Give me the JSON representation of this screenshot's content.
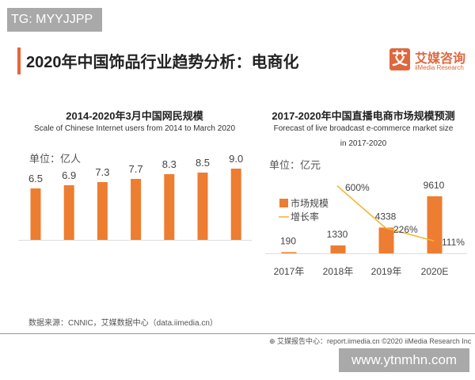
{
  "watermark_top": "TG: MYYJJPP",
  "watermark_bottom": "www.ytnmhn.com",
  "header": {
    "title": "2020年中国饰品行业趋势分析：电商化",
    "logo_mark": "艾",
    "logo_cn": "艾媒咨询",
    "logo_en": "iiMedia Research"
  },
  "colors": {
    "accent": "#e8643a",
    "bar": "#ed7d31",
    "line": "#f2b632"
  },
  "source": "数据来源：CNNIC，艾媒数据中心（data.iimedia.cn）",
  "footer": "艾媒报告中心：report.iimedia.cn  ©2020  iiMedia Research  Inc",
  "chart_data": [
    {
      "type": "bar",
      "title": "2014-2020年3月中国网民规模",
      "subtitle": "Scale of Chinese Internet users from 2014 to March 2020",
      "unit": "单位：亿人",
      "values": [
        6.5,
        6.9,
        7.3,
        7.7,
        8.3,
        8.5,
        9.0
      ],
      "labels": [
        "6.5",
        "6.9",
        "7.3",
        "7.7",
        "8.3",
        "8.5",
        "9.0"
      ],
      "grid": false
    },
    {
      "type": "bar+line",
      "title": "2017-2020年中国直播电商市场规模预测",
      "subtitle": "Forecast of live broadcast e-commerce market size",
      "subtitle2": "in 2017-2020",
      "unit": "单位：亿元",
      "categories": [
        "2017年",
        "2018年",
        "2019年",
        "2020E"
      ],
      "series": [
        {
          "name": "市场规模",
          "type": "bar",
          "values": [
            190,
            1330,
            4338,
            9610
          ],
          "labels": [
            "190",
            "1330",
            "4338",
            "9610"
          ]
        },
        {
          "name": "增长率",
          "type": "line",
          "values": [
            null,
            600,
            226,
            111
          ],
          "labels": [
            "",
            "600%",
            "226%",
            "111%"
          ]
        }
      ],
      "legend": "left",
      "grid": false
    }
  ]
}
